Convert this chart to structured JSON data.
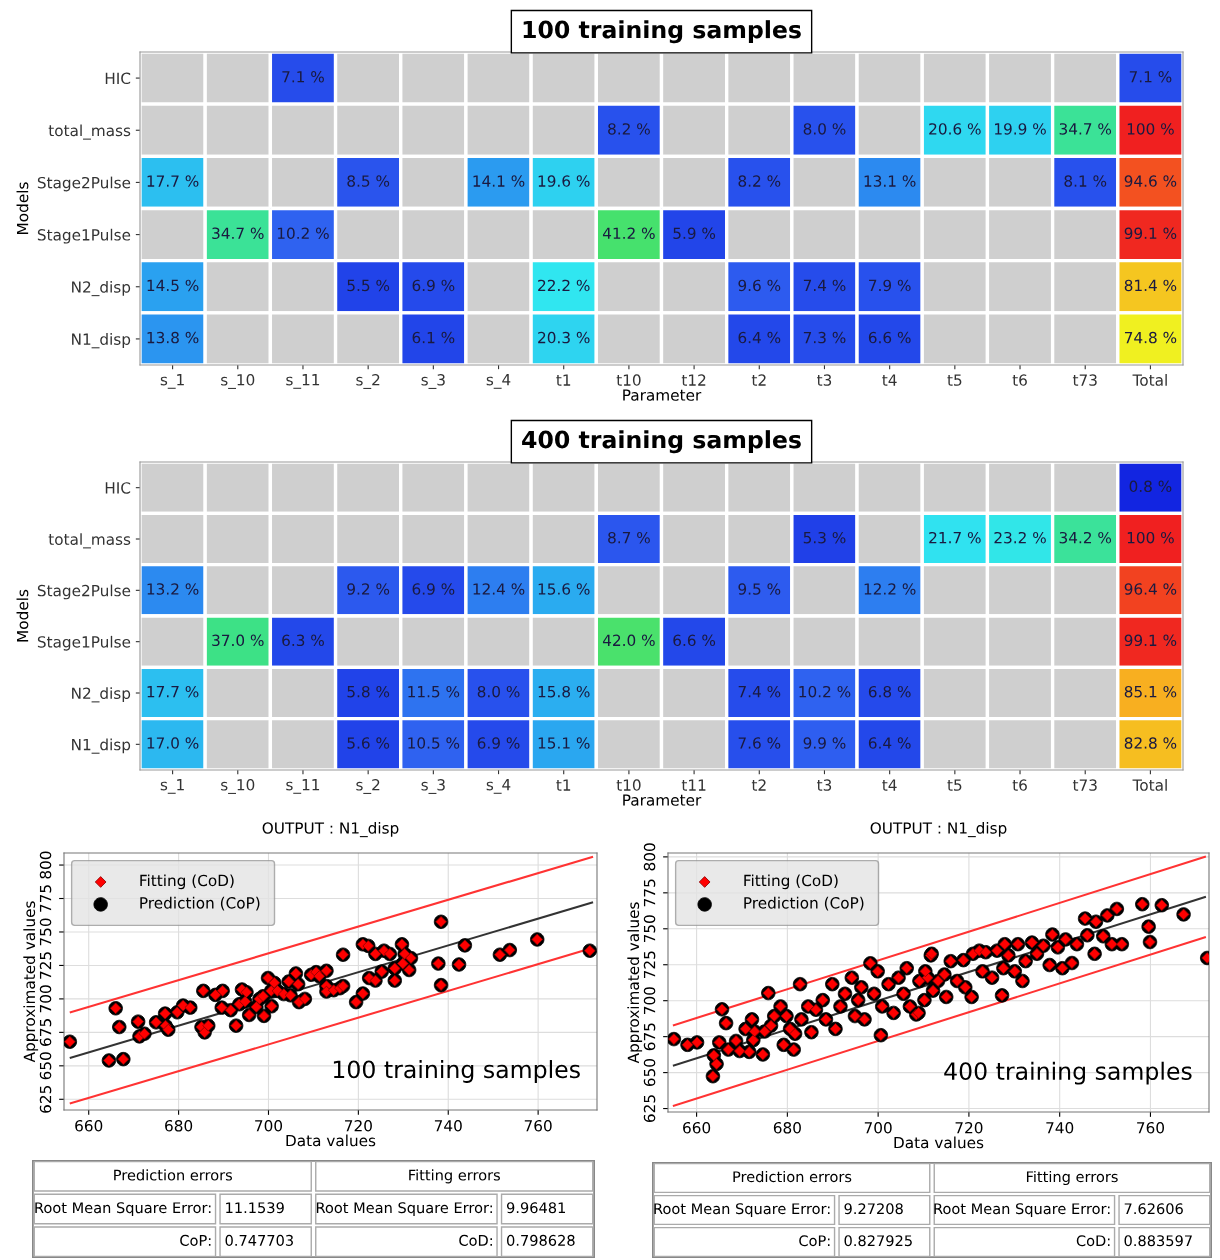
{
  "chart_data": [
    {
      "type": "heatmap",
      "title": "100 training samples",
      "xlabel": "Parameter",
      "ylabel": "Models",
      "categories": [
        "s_1",
        "s_10",
        "s_11",
        "s_2",
        "s_3",
        "s_4",
        "t1",
        "t10",
        "t12",
        "t2",
        "t3",
        "t4",
        "t5",
        "t6",
        "t73",
        "Total"
      ],
      "y_categories": [
        "HIC",
        "total_mass",
        "Stage2Pulse",
        "Stage1Pulse",
        "N2_disp",
        "N1_disp"
      ],
      "cells": [
        [
          null,
          null,
          7.1,
          null,
          null,
          null,
          null,
          null,
          null,
          null,
          null,
          null,
          null,
          null,
          null,
          7.1
        ],
        [
          null,
          null,
          null,
          null,
          null,
          null,
          null,
          8.2,
          null,
          null,
          8.0,
          null,
          20.6,
          19.9,
          34.7,
          100
        ],
        [
          17.7,
          null,
          null,
          8.5,
          null,
          14.1,
          19.6,
          null,
          null,
          8.2,
          null,
          13.1,
          null,
          null,
          8.1,
          94.6
        ],
        [
          null,
          34.7,
          10.2,
          null,
          null,
          null,
          null,
          41.2,
          5.9,
          null,
          null,
          null,
          null,
          null,
          null,
          99.1
        ],
        [
          14.5,
          null,
          null,
          5.5,
          6.9,
          null,
          22.2,
          null,
          null,
          9.6,
          7.4,
          7.9,
          null,
          null,
          null,
          81.4
        ],
        [
          13.8,
          null,
          null,
          null,
          6.1,
          null,
          20.3,
          null,
          null,
          6.4,
          7.3,
          6.6,
          null,
          null,
          null,
          74.8
        ]
      ],
      "cell_labels": [
        [
          null,
          null,
          "7.1 %",
          null,
          null,
          null,
          null,
          null,
          null,
          null,
          null,
          null,
          null,
          null,
          null,
          "7.1 %"
        ],
        [
          null,
          null,
          null,
          null,
          null,
          null,
          null,
          "8.2 %",
          null,
          null,
          "8.0 %",
          null,
          "20.6 %",
          "19.9 %",
          "34.7 %",
          "100 %"
        ],
        [
          "17.7 %",
          null,
          null,
          "8.5 %",
          null,
          "14.1 %",
          "19.6 %",
          null,
          null,
          "8.2 %",
          null,
          "13.1 %",
          null,
          null,
          "8.1 %",
          "94.6 %"
        ],
        [
          null,
          "34.7 %",
          "10.2 %",
          null,
          null,
          null,
          null,
          "41.2 %",
          "5.9 %",
          null,
          null,
          null,
          null,
          null,
          null,
          "99.1 %"
        ],
        [
          "14.5 %",
          null,
          null,
          "5.5 %",
          "6.9 %",
          null,
          "22.2 %",
          null,
          null,
          "9.6 %",
          "7.4 %",
          "7.9 %",
          null,
          null,
          null,
          "81.4 %"
        ],
        [
          "13.8 %",
          null,
          null,
          null,
          "6.1 %",
          null,
          "20.3 %",
          null,
          null,
          "6.4 %",
          "7.3 %",
          "6.6 %",
          null,
          null,
          null,
          "74.8 %"
        ]
      ]
    },
    {
      "type": "heatmap",
      "title": "400 training samples",
      "xlabel": "Parameter",
      "ylabel": "Models",
      "categories": [
        "s_1",
        "s_10",
        "s_11",
        "s_2",
        "s_3",
        "s_4",
        "t1",
        "t10",
        "t11",
        "t2",
        "t3",
        "t4",
        "t5",
        "t6",
        "t73",
        "Total"
      ],
      "y_categories": [
        "HIC",
        "total_mass",
        "Stage2Pulse",
        "Stage1Pulse",
        "N2_disp",
        "N1_disp"
      ],
      "cells": [
        [
          null,
          null,
          null,
          null,
          null,
          null,
          null,
          null,
          null,
          null,
          null,
          null,
          null,
          null,
          null,
          0.8
        ],
        [
          null,
          null,
          null,
          null,
          null,
          null,
          null,
          8.7,
          null,
          null,
          5.3,
          null,
          21.7,
          23.2,
          34.2,
          100
        ],
        [
          13.2,
          null,
          null,
          9.2,
          6.9,
          12.4,
          15.6,
          null,
          null,
          9.5,
          null,
          12.2,
          null,
          null,
          null,
          96.4
        ],
        [
          null,
          37.0,
          6.3,
          null,
          null,
          null,
          null,
          42.0,
          6.6,
          null,
          null,
          null,
          null,
          null,
          null,
          99.1
        ],
        [
          17.7,
          null,
          null,
          5.8,
          11.5,
          8.0,
          15.8,
          null,
          null,
          7.4,
          10.2,
          6.8,
          null,
          null,
          null,
          85.1
        ],
        [
          17.0,
          null,
          null,
          5.6,
          10.5,
          6.9,
          15.1,
          null,
          null,
          7.6,
          9.9,
          6.4,
          null,
          null,
          null,
          82.8
        ]
      ],
      "cell_labels": [
        [
          null,
          null,
          null,
          null,
          null,
          null,
          null,
          null,
          null,
          null,
          null,
          null,
          null,
          null,
          null,
          "0.8 %"
        ],
        [
          null,
          null,
          null,
          null,
          null,
          null,
          null,
          "8.7 %",
          null,
          null,
          "5.3 %",
          null,
          "21.7 %",
          "23.2 %",
          "34.2 %",
          "100 %"
        ],
        [
          "13.2 %",
          null,
          null,
          "9.2 %",
          "6.9 %",
          "12.4 %",
          "15.6 %",
          null,
          null,
          "9.5 %",
          null,
          "12.2 %",
          null,
          null,
          null,
          "96.4 %"
        ],
        [
          null,
          "37.0 %",
          "6.3 %",
          null,
          null,
          null,
          null,
          "42.0 %",
          "6.6 %",
          null,
          null,
          null,
          null,
          null,
          null,
          "99.1 %"
        ],
        [
          "17.7 %",
          null,
          null,
          "5.8 %",
          "11.5 %",
          "8.0 %",
          "15.8 %",
          null,
          null,
          "7.4 %",
          "10.2 %",
          "6.8 %",
          null,
          null,
          null,
          "85.1 %"
        ],
        [
          "17.0 %",
          null,
          null,
          "5.6 %",
          "10.5 %",
          "6.9 %",
          "15.1 %",
          null,
          null,
          "7.6 %",
          "9.9 %",
          "6.4 %",
          null,
          null,
          null,
          "82.8 %"
        ]
      ]
    },
    {
      "type": "scatter",
      "title": "OUTPUT : N1_disp",
      "xlabel": "Data values",
      "ylabel": "Approximated values",
      "xlim": [
        654.5,
        773.1
      ],
      "ylim": [
        617,
        809
      ],
      "xticks": [
        660,
        680,
        700,
        720,
        740,
        760
      ],
      "yticks": [
        625,
        650,
        675,
        700,
        725,
        750,
        775,
        800
      ],
      "grid": true,
      "legend": "top left",
      "series": [
        {
          "name": "Fitting (CoD)",
          "color": "#ff0000",
          "marker": "diamond",
          "x": [
            655.8,
            664.5,
            667.7,
            666,
            666.8,
            671,
            671.3,
            672.4,
            675,
            677,
            677.1,
            677.7,
            679.7,
            681,
            682.6,
            685.5,
            685.1,
            685.8,
            686.6,
            688.2,
            689.8,
            689.6,
            691.6,
            692.8,
            693.5,
            694.1,
            694.8,
            695.1,
            695.7,
            697.3,
            698,
            699,
            698.8,
            699.9,
            700.6,
            700.7,
            701.3,
            702,
            703.4,
            704.9,
            704.5,
            706.1,
            706.6,
            706.8,
            708.1,
            709.5,
            710.6,
            711.3,
            712.9,
            712.9,
            712.9,
            714.5,
            715.9,
            716.6,
            716.6,
            719.5,
            721,
            721,
            722.2,
            722.4,
            723.8,
            723.8,
            725.2,
            725.7,
            727,
            728.1,
            728.1,
            729.7,
            729.9,
            730.3,
            731.3,
            731.7,
            737.8,
            738.4,
            738.4,
            742.4,
            743.7,
            751.5,
            753.7,
            759.8,
            771.5
          ],
          "values": [
            668,
            654,
            655,
            693,
            679,
            683,
            672,
            674,
            682.5,
            689,
            680,
            677,
            690,
            695,
            693.5,
            706,
            679,
            675,
            680,
            703,
            706,
            693.5,
            691.6,
            680,
            696,
            707,
            698,
            705,
            688,
            694,
            700,
            687.3,
            702,
            715.6,
            706,
            694.5,
            712,
            706,
            703.6,
            702.7,
            713,
            719,
            711,
            697.6,
            700,
            718,
            720,
            717,
            721,
            709.6,
            705.5,
            706.5,
            708,
            709.6,
            733,
            697.6,
            704,
            740.8,
            739.6,
            715.6,
            713.7,
            733.6,
            720.4,
            736,
            733.6,
            722.8,
            713.7,
            740.8,
            726.4,
            733.6,
            721.6,
            730.5,
            726.4,
            757.6,
            710.3,
            725.7,
            740,
            733,
            736.5,
            744.4,
            736
          ]
        },
        {
          "name": "Prediction (CoP)",
          "color": "#000000",
          "marker": "circle",
          "x": [
            655.8,
            664.5,
            667.7,
            666,
            666.8,
            671,
            671.3,
            672.4,
            675,
            677,
            677.1,
            677.7,
            679.7,
            681,
            682.6,
            685.5,
            685.1,
            685.8,
            686.6,
            688.2,
            689.8,
            689.6,
            691.6,
            692.8,
            693.5,
            694.1,
            694.8,
            695.1,
            695.7,
            697.3,
            698,
            699,
            698.8,
            699.9,
            700.6,
            700.7,
            701.3,
            702,
            703.4,
            704.9,
            704.5,
            706.1,
            706.6,
            706.8,
            708.1,
            709.5,
            710.6,
            711.3,
            712.9,
            712.9,
            712.9,
            714.5,
            715.9,
            716.6,
            716.6,
            719.5,
            721,
            721,
            722.2,
            722.4,
            723.8,
            723.8,
            725.2,
            725.7,
            727,
            728.1,
            728.1,
            729.7,
            729.9,
            730.3,
            731.3,
            731.7,
            737.8,
            738.4,
            738.4,
            742.4,
            743.7,
            751.5,
            753.7,
            759.8,
            771.5
          ],
          "values": [
            668,
            654,
            655,
            693,
            679,
            683,
            672,
            674,
            682.5,
            689,
            680,
            677,
            690,
            695,
            693.5,
            706,
            679,
            675,
            680,
            703,
            706,
            693.5,
            691.6,
            680,
            696,
            707,
            698,
            705,
            688,
            694,
            700,
            687.3,
            702,
            715.6,
            706,
            694.5,
            712,
            706,
            703.6,
            702.7,
            713,
            719,
            711,
            697.6,
            700,
            718,
            720,
            717,
            721,
            709.6,
            705.5,
            706.5,
            708,
            709.6,
            733,
            697.6,
            704,
            740.8,
            739.6,
            715.6,
            713.7,
            733.6,
            720.4,
            736,
            733.6,
            722.8,
            713.7,
            740.8,
            726.4,
            733.6,
            721.6,
            730.5,
            726.4,
            757.6,
            710.3,
            725.7,
            740,
            733,
            736.5,
            744.4,
            736
          ]
        },
        {
          "type": "line",
          "color": "#333333",
          "x": [
            656,
            772
          ],
          "values": [
            656,
            772
          ]
        },
        {
          "type": "line",
          "color": "#ff3333",
          "x": [
            656,
            772
          ],
          "values": [
            690,
            806
          ]
        },
        {
          "type": "line",
          "color": "#ff3333",
          "x": [
            656,
            772
          ],
          "values": [
            622,
            738
          ]
        }
      ],
      "annotations": [
        "100 training samples",
        "Prediction errors",
        "Fitting errors",
        "Root Mean Square Error:",
        "11.1539",
        "Root Mean Square Error:",
        "9.96481",
        "CoP:",
        "0.747703",
        "CoD:",
        "0.798628"
      ]
    },
    {
      "type": "scatter",
      "title": "OUTPUT : N1_disp",
      "xlabel": "Data values",
      "ylabel": "Approximated values",
      "xlim": [
        653.7,
        772.9
      ],
      "ylim": [
        622.6,
        802.7
      ],
      "xticks": [
        660,
        680,
        700,
        720,
        740,
        760
      ],
      "yticks": [
        625,
        650,
        675,
        700,
        725,
        750,
        775,
        800
      ],
      "grid": true,
      "legend": "top left",
      "series": [
        {
          "name": "Fitting (CoD)",
          "color": "#ff0000",
          "marker": "diamond",
          "x": [
            655,
            658,
            660.1,
            663.8,
            663.6,
            664.4,
            665,
            665.6,
            666.5,
            667,
            668.7,
            669.5,
            670.8,
            671.6,
            672.2,
            672.5,
            672.8,
            674.6,
            675,
            675.8,
            676.4,
            677.1,
            678.5,
            679.2,
            679.8,
            680.6,
            681.4,
            681.7,
            682.8,
            683.1,
            684.6,
            685.3,
            686.3,
            687.8,
            688.5,
            689.9,
            690.6,
            691.7,
            692.7,
            694.2,
            694.9,
            695.6,
            696.3,
            697,
            698.3,
            699.1,
            699.9,
            700.6,
            700.9,
            702.3,
            703.4,
            704.5,
            705.6,
            706.3,
            707,
            708.4,
            709.1,
            710.2,
            710.9,
            711.6,
            708.9,
            710.4,
            711.8,
            712.1,
            713.2,
            714.6,
            715,
            716,
            717.4,
            718.8,
            719.2,
            720.6,
            720.9,
            722.3,
            723,
            723.7,
            725.1,
            726.2,
            727.3,
            727.6,
            727.9,
            728.7,
            730.1,
            730.8,
            731.8,
            732.5,
            733.9,
            735,
            736.4,
            737.8,
            738.4,
            739.6,
            740.6,
            741.3,
            742.7,
            743.8,
            745.6,
            746.1,
            748,
            747.7,
            749.6,
            750.5,
            751.5,
            752.6,
            753.7,
            758.2,
            759.6,
            759.9,
            762.5,
            767.3,
            772.5
          ],
          "values": [
            673.3,
            669.3,
            671,
            662,
            647.5,
            656,
            671,
            694,
            684.4,
            666,
            672,
            665,
            680.4,
            664.4,
            687,
            672.6,
            678.6,
            662.6,
            678.6,
            705.3,
            682.6,
            689.3,
            696,
            669.3,
            689.3,
            680.4,
            666,
            677,
            711.5,
            687,
            696,
            678.1,
            693.7,
            700.4,
            687,
            711.5,
            680.4,
            696,
            704.8,
            716,
            689.3,
            700.4,
            709.3,
            687,
            726,
            704.8,
            720.4,
            676,
            696,
            711.5,
            691.5,
            716,
            704.8,
            722.6,
            696,
            690.4,
            713.7,
            700.4,
            716,
            731.5,
            691.5,
            720.4,
            732.6,
            707,
            713.7,
            718.2,
            702.6,
            727.5,
            713.7,
            728.2,
            709.3,
            702.6,
            732.6,
            734.8,
            720.4,
            733.7,
            716,
            734.8,
            703.7,
            722.6,
            739.3,
            731.5,
            720.4,
            739.3,
            713.7,
            727.5,
            740.4,
            732.6,
            738.2,
            724.8,
            746,
            737.1,
            722.6,
            742.6,
            726.2,
            739.3,
            757.1,
            745.5,
            754.9,
            732.6,
            744.8,
            759.3,
            739.3,
            763.8,
            739.3,
            767.1,
            751.5,
            740.8,
            766.4,
            760,
            729.7
          ]
        },
        {
          "name": "Prediction (CoP)",
          "color": "#000000",
          "marker": "circle",
          "x": [
            655,
            658,
            660.1,
            663.8,
            663.6,
            664.4,
            665,
            665.6,
            666.5,
            667,
            668.7,
            669.5,
            670.8,
            671.6,
            672.2,
            672.5,
            672.8,
            674.6,
            675,
            675.8,
            676.4,
            677.1,
            678.5,
            679.2,
            679.8,
            680.6,
            681.4,
            681.7,
            682.8,
            683.1,
            684.6,
            685.3,
            686.3,
            687.8,
            688.5,
            689.9,
            690.6,
            691.7,
            692.7,
            694.2,
            694.9,
            695.6,
            696.3,
            697,
            698.3,
            699.1,
            699.9,
            700.6,
            700.9,
            702.3,
            703.4,
            704.5,
            705.6,
            706.3,
            707,
            708.4,
            709.1,
            710.2,
            710.9,
            711.6,
            708.9,
            710.4,
            711.8,
            712.1,
            713.2,
            714.6,
            715,
            716,
            717.4,
            718.8,
            719.2,
            720.6,
            720.9,
            722.3,
            723,
            723.7,
            725.1,
            726.2,
            727.3,
            727.6,
            727.9,
            728.7,
            730.1,
            730.8,
            731.8,
            732.5,
            733.9,
            735,
            736.4,
            737.8,
            738.4,
            739.6,
            740.6,
            741.3,
            742.7,
            743.8,
            745.6,
            746.1,
            748,
            747.7,
            749.6,
            750.5,
            751.5,
            752.6,
            753.7,
            758.2,
            759.6,
            759.9,
            762.5,
            767.3,
            772.5
          ],
          "values": [
            673.3,
            669.3,
            671,
            662,
            647.5,
            656,
            671,
            694,
            684.4,
            666,
            672,
            665,
            680.4,
            664.4,
            687,
            672.6,
            678.6,
            662.6,
            678.6,
            705.3,
            682.6,
            689.3,
            696,
            669.3,
            689.3,
            680.4,
            666,
            677,
            711.5,
            687,
            696,
            678.1,
            693.7,
            700.4,
            687,
            711.5,
            680.4,
            696,
            704.8,
            716,
            689.3,
            700.4,
            709.3,
            687,
            726,
            704.8,
            720.4,
            676,
            696,
            711.5,
            691.5,
            716,
            704.8,
            722.6,
            696,
            690.4,
            713.7,
            700.4,
            716,
            731.5,
            691.5,
            720.4,
            732.6,
            707,
            713.7,
            718.2,
            702.6,
            727.5,
            713.7,
            728.2,
            709.3,
            702.6,
            732.6,
            734.8,
            720.4,
            733.7,
            716,
            734.8,
            703.7,
            722.6,
            739.3,
            731.5,
            720.4,
            739.3,
            713.7,
            727.5,
            740.4,
            732.6,
            738.2,
            724.8,
            746,
            737.1,
            722.6,
            742.6,
            726.2,
            739.3,
            757.1,
            745.5,
            754.9,
            732.6,
            744.8,
            759.3,
            739.3,
            763.8,
            739.3,
            767.1,
            751.5,
            740.8,
            766.4,
            760,
            729.7
          ]
        },
        {
          "type": "line",
          "color": "#333333",
          "x": [
            655,
            772
          ],
          "values": [
            655,
            772
          ]
        },
        {
          "type": "line",
          "color": "#ff3333",
          "x": [
            655,
            772
          ],
          "values": [
            683,
            800
          ]
        },
        {
          "type": "line",
          "color": "#ff3333",
          "x": [
            655,
            772
          ],
          "values": [
            627,
            744
          ]
        }
      ],
      "annotations": [
        "400 training samples",
        "Prediction errors",
        "Fitting errors",
        "Root Mean Square Error:",
        "9.27208",
        "Root Mean Square Error:",
        "7.62606",
        "CoP:",
        "0.827925",
        "CoD:",
        "0.883597"
      ]
    }
  ]
}
